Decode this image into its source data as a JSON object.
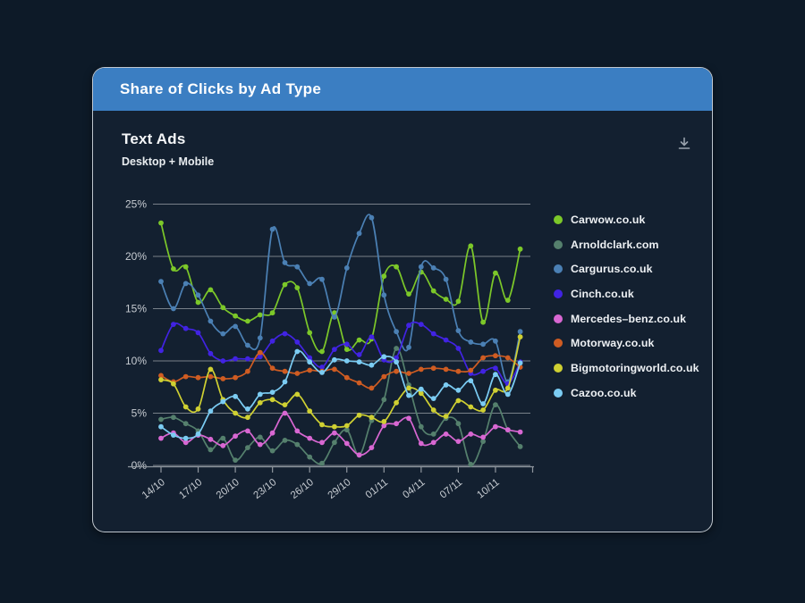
{
  "window": {
    "header_title": "Share of Clicks by Ad Type"
  },
  "card": {
    "title": "Text Ads",
    "subtitle": "Desktop + Mobile",
    "download_icon": "download-icon"
  },
  "chart_data": {
    "type": "line",
    "title": "Text Ads",
    "subtitle": "Desktop + Mobile",
    "grid": true,
    "legend_position": "right",
    "ylim": [
      0,
      25
    ],
    "y_tick_labels": [
      "0%",
      "5%",
      "10%",
      "15%",
      "20%",
      "25%"
    ],
    "x_tick_labels": [
      "14/10",
      "17/10",
      "20/10",
      "23/10",
      "26/10",
      "29/10",
      "01/11",
      "04/11",
      "07/11",
      "10/11"
    ],
    "x_tick_days": [
      0,
      3,
      6,
      9,
      12,
      15,
      18,
      21,
      24,
      27
    ],
    "point_interval": "daily",
    "num_points": 30,
    "axis_color": "#8f969e",
    "grid_color": "#8a9199",
    "label_color": "#c7ccd2",
    "series": [
      {
        "name": "Carwow.co.uk",
        "key": "carwow",
        "color": "#7cc829",
        "values": [
          23.2,
          18.8,
          19.0,
          15.6,
          16.8,
          15.1,
          14.3,
          13.8,
          14.4,
          14.6,
          17.3,
          17.0,
          12.7,
          10.9,
          14.6,
          11.1,
          12.0,
          12.1,
          18.1,
          19.0,
          16.4,
          18.5,
          16.7,
          15.9,
          15.7,
          21.0,
          13.7,
          18.4,
          15.8,
          20.7
        ]
      },
      {
        "name": "Arnoldclark.com",
        "key": "arnoldclark",
        "color": "#55806d",
        "values": [
          4.4,
          4.6,
          4.0,
          3.3,
          1.5,
          2.6,
          0.5,
          1.7,
          2.7,
          1.4,
          2.4,
          2.0,
          0.8,
          0.2,
          2.2,
          3.4,
          1.0,
          4.3,
          6.3,
          11.2,
          7.7,
          3.7,
          3.0,
          4.5,
          4.0,
          0.1,
          2.3,
          5.8,
          3.4,
          1.8
        ]
      },
      {
        "name": "Cargurus.co.uk",
        "key": "cargurus",
        "color": "#4b80b4",
        "values": [
          17.6,
          15.0,
          17.4,
          16.3,
          13.8,
          12.6,
          13.3,
          11.5,
          12.2,
          22.6,
          19.4,
          19.0,
          17.4,
          17.8,
          14.2,
          18.9,
          22.2,
          23.7,
          16.3,
          12.8,
          11.3,
          19.0,
          18.9,
          17.8,
          12.9,
          11.8,
          11.6,
          11.9,
          8.0,
          12.8
        ]
      },
      {
        "name": "Cinch.co.uk",
        "key": "cinch",
        "color": "#4123e3",
        "values": [
          11.0,
          13.5,
          13.1,
          12.7,
          10.7,
          10.0,
          10.2,
          10.2,
          10.4,
          11.9,
          12.6,
          11.8,
          10.3,
          9.4,
          11.1,
          11.6,
          10.6,
          12.3,
          10.1,
          10.3,
          13.4,
          13.5,
          12.6,
          12.0,
          11.2,
          8.8,
          9.0,
          9.3,
          7.8,
          9.9
        ]
      },
      {
        "name": "Mercedes–benz.co.uk",
        "key": "mercedes",
        "color": "#d867d2",
        "values": [
          2.6,
          3.1,
          2.2,
          2.9,
          2.5,
          1.9,
          2.8,
          3.3,
          2.0,
          3.1,
          5.0,
          3.3,
          2.6,
          2.2,
          3.1,
          2.1,
          1.0,
          1.7,
          3.8,
          4.0,
          4.5,
          2.1,
          2.2,
          3.0,
          2.3,
          3.0,
          2.7,
          3.7,
          3.4,
          3.2
        ]
      },
      {
        "name": "Motorway.co.uk",
        "key": "motorway",
        "color": "#cf5c22",
        "values": [
          8.6,
          8.0,
          8.5,
          8.4,
          8.5,
          8.3,
          8.4,
          9.0,
          10.8,
          9.3,
          9.0,
          8.8,
          9.1,
          9.0,
          9.2,
          8.4,
          7.9,
          7.4,
          8.5,
          9.0,
          8.8,
          9.2,
          9.3,
          9.2,
          9.0,
          9.1,
          10.3,
          10.5,
          10.3,
          9.4
        ]
      },
      {
        "name": "Bigmotoringworld.co.uk",
        "key": "bigmotoringworld",
        "color": "#cfd032",
        "values": [
          8.2,
          7.8,
          5.6,
          5.4,
          9.2,
          6.3,
          5.0,
          4.6,
          6.0,
          6.3,
          5.8,
          6.8,
          5.2,
          3.9,
          3.7,
          3.8,
          4.8,
          4.6,
          4.2,
          6.0,
          7.4,
          6.9,
          5.3,
          4.7,
          6.2,
          5.6,
          5.3,
          7.2,
          7.4,
          12.3
        ]
      },
      {
        "name": "Cazoo.co.uk",
        "key": "cazoo",
        "color": "#7bccf3",
        "values": [
          3.7,
          2.9,
          2.6,
          3.0,
          5.2,
          6.1,
          6.6,
          5.4,
          6.8,
          7.0,
          8.0,
          10.9,
          9.9,
          8.9,
          10.1,
          10.0,
          9.9,
          9.6,
          10.4,
          9.9,
          6.7,
          7.3,
          6.4,
          7.7,
          7.2,
          8.1,
          5.9,
          8.7,
          6.8,
          9.8
        ]
      }
    ]
  }
}
